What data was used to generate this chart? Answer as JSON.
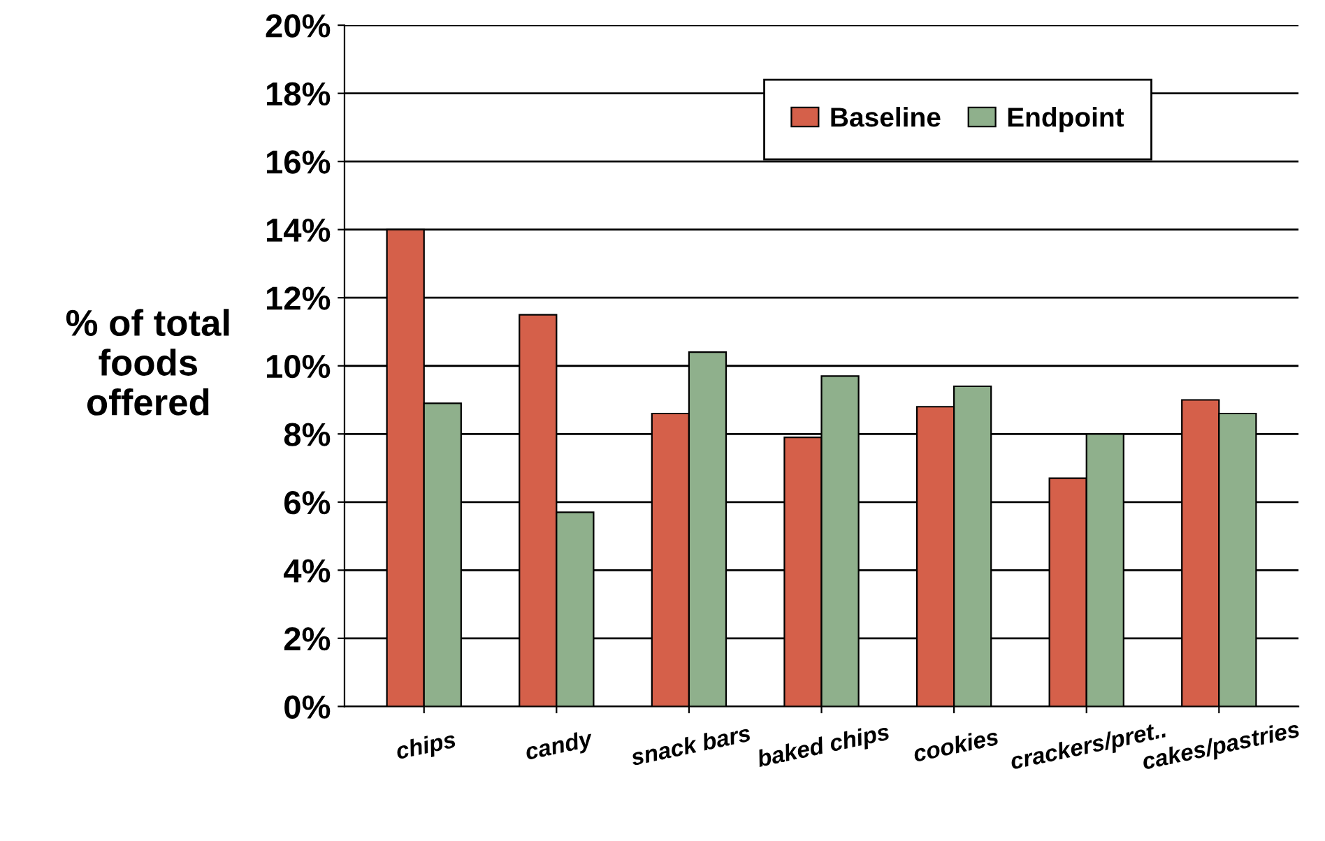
{
  "chart_data": {
    "type": "bar",
    "ylabel": "% of total\nfoods\noffered",
    "categories": [
      "chips",
      "candy",
      "snack bars",
      "baked chips",
      "cookies",
      "crackers/pret..",
      "cakes/pastries"
    ],
    "series": [
      {
        "name": "Baseline",
        "color": "#d5604a",
        "values": [
          14.0,
          11.5,
          8.6,
          7.9,
          8.8,
          6.7,
          9.0
        ]
      },
      {
        "name": "Endpoint",
        "color": "#8fb08c",
        "values": [
          8.9,
          5.7,
          10.4,
          9.7,
          9.4,
          8.0,
          8.6
        ]
      }
    ],
    "ylim": [
      0,
      20
    ],
    "yticks": [
      {
        "value": 0,
        "label": "0%"
      },
      {
        "value": 2,
        "label": "2%"
      },
      {
        "value": 4,
        "label": "4%"
      },
      {
        "value": 6,
        "label": "6%"
      },
      {
        "value": 8,
        "label": "8%"
      },
      {
        "value": 10,
        "label": "10%"
      },
      {
        "value": 12,
        "label": "12%"
      },
      {
        "value": 14,
        "label": "14%"
      },
      {
        "value": 16,
        "label": "16%"
      },
      {
        "value": 18,
        "label": "18%"
      },
      {
        "value": 20,
        "label": "20%"
      }
    ],
    "grid": "y",
    "legend": "top right"
  }
}
